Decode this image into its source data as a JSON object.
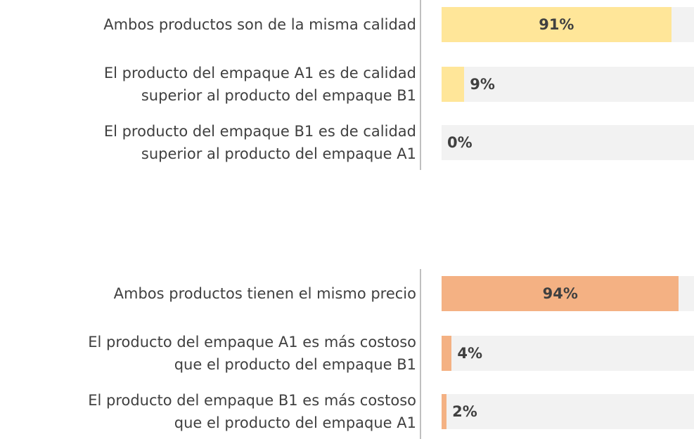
{
  "chart_data": [
    {
      "type": "bar",
      "orientation": "horizontal",
      "categories": [
        "Ambos productos son de la misma calidad",
        "El producto del empaque A1 es de calidad\nsuperior al producto del empaque B1",
        "El producto del empaque B1 es de calidad\nsuperior al producto del empaque A1"
      ],
      "values": [
        91,
        9,
        0
      ],
      "value_labels": [
        "91%",
        "9%",
        "0%"
      ],
      "color": "#ffe699",
      "xlim": [
        0,
        100
      ]
    },
    {
      "type": "bar",
      "orientation": "horizontal",
      "categories": [
        "Ambos productos tienen el mismo precio",
        "El producto del empaque A1 es más costoso\nque el producto del empaque B1",
        "El producto del empaque B1 es más costoso\nque el producto del empaque A1"
      ],
      "values": [
        94,
        4,
        2
      ],
      "value_labels": [
        "94%",
        "4%",
        "2%"
      ],
      "color": "#f4b183",
      "xlim": [
        0,
        100
      ]
    }
  ]
}
